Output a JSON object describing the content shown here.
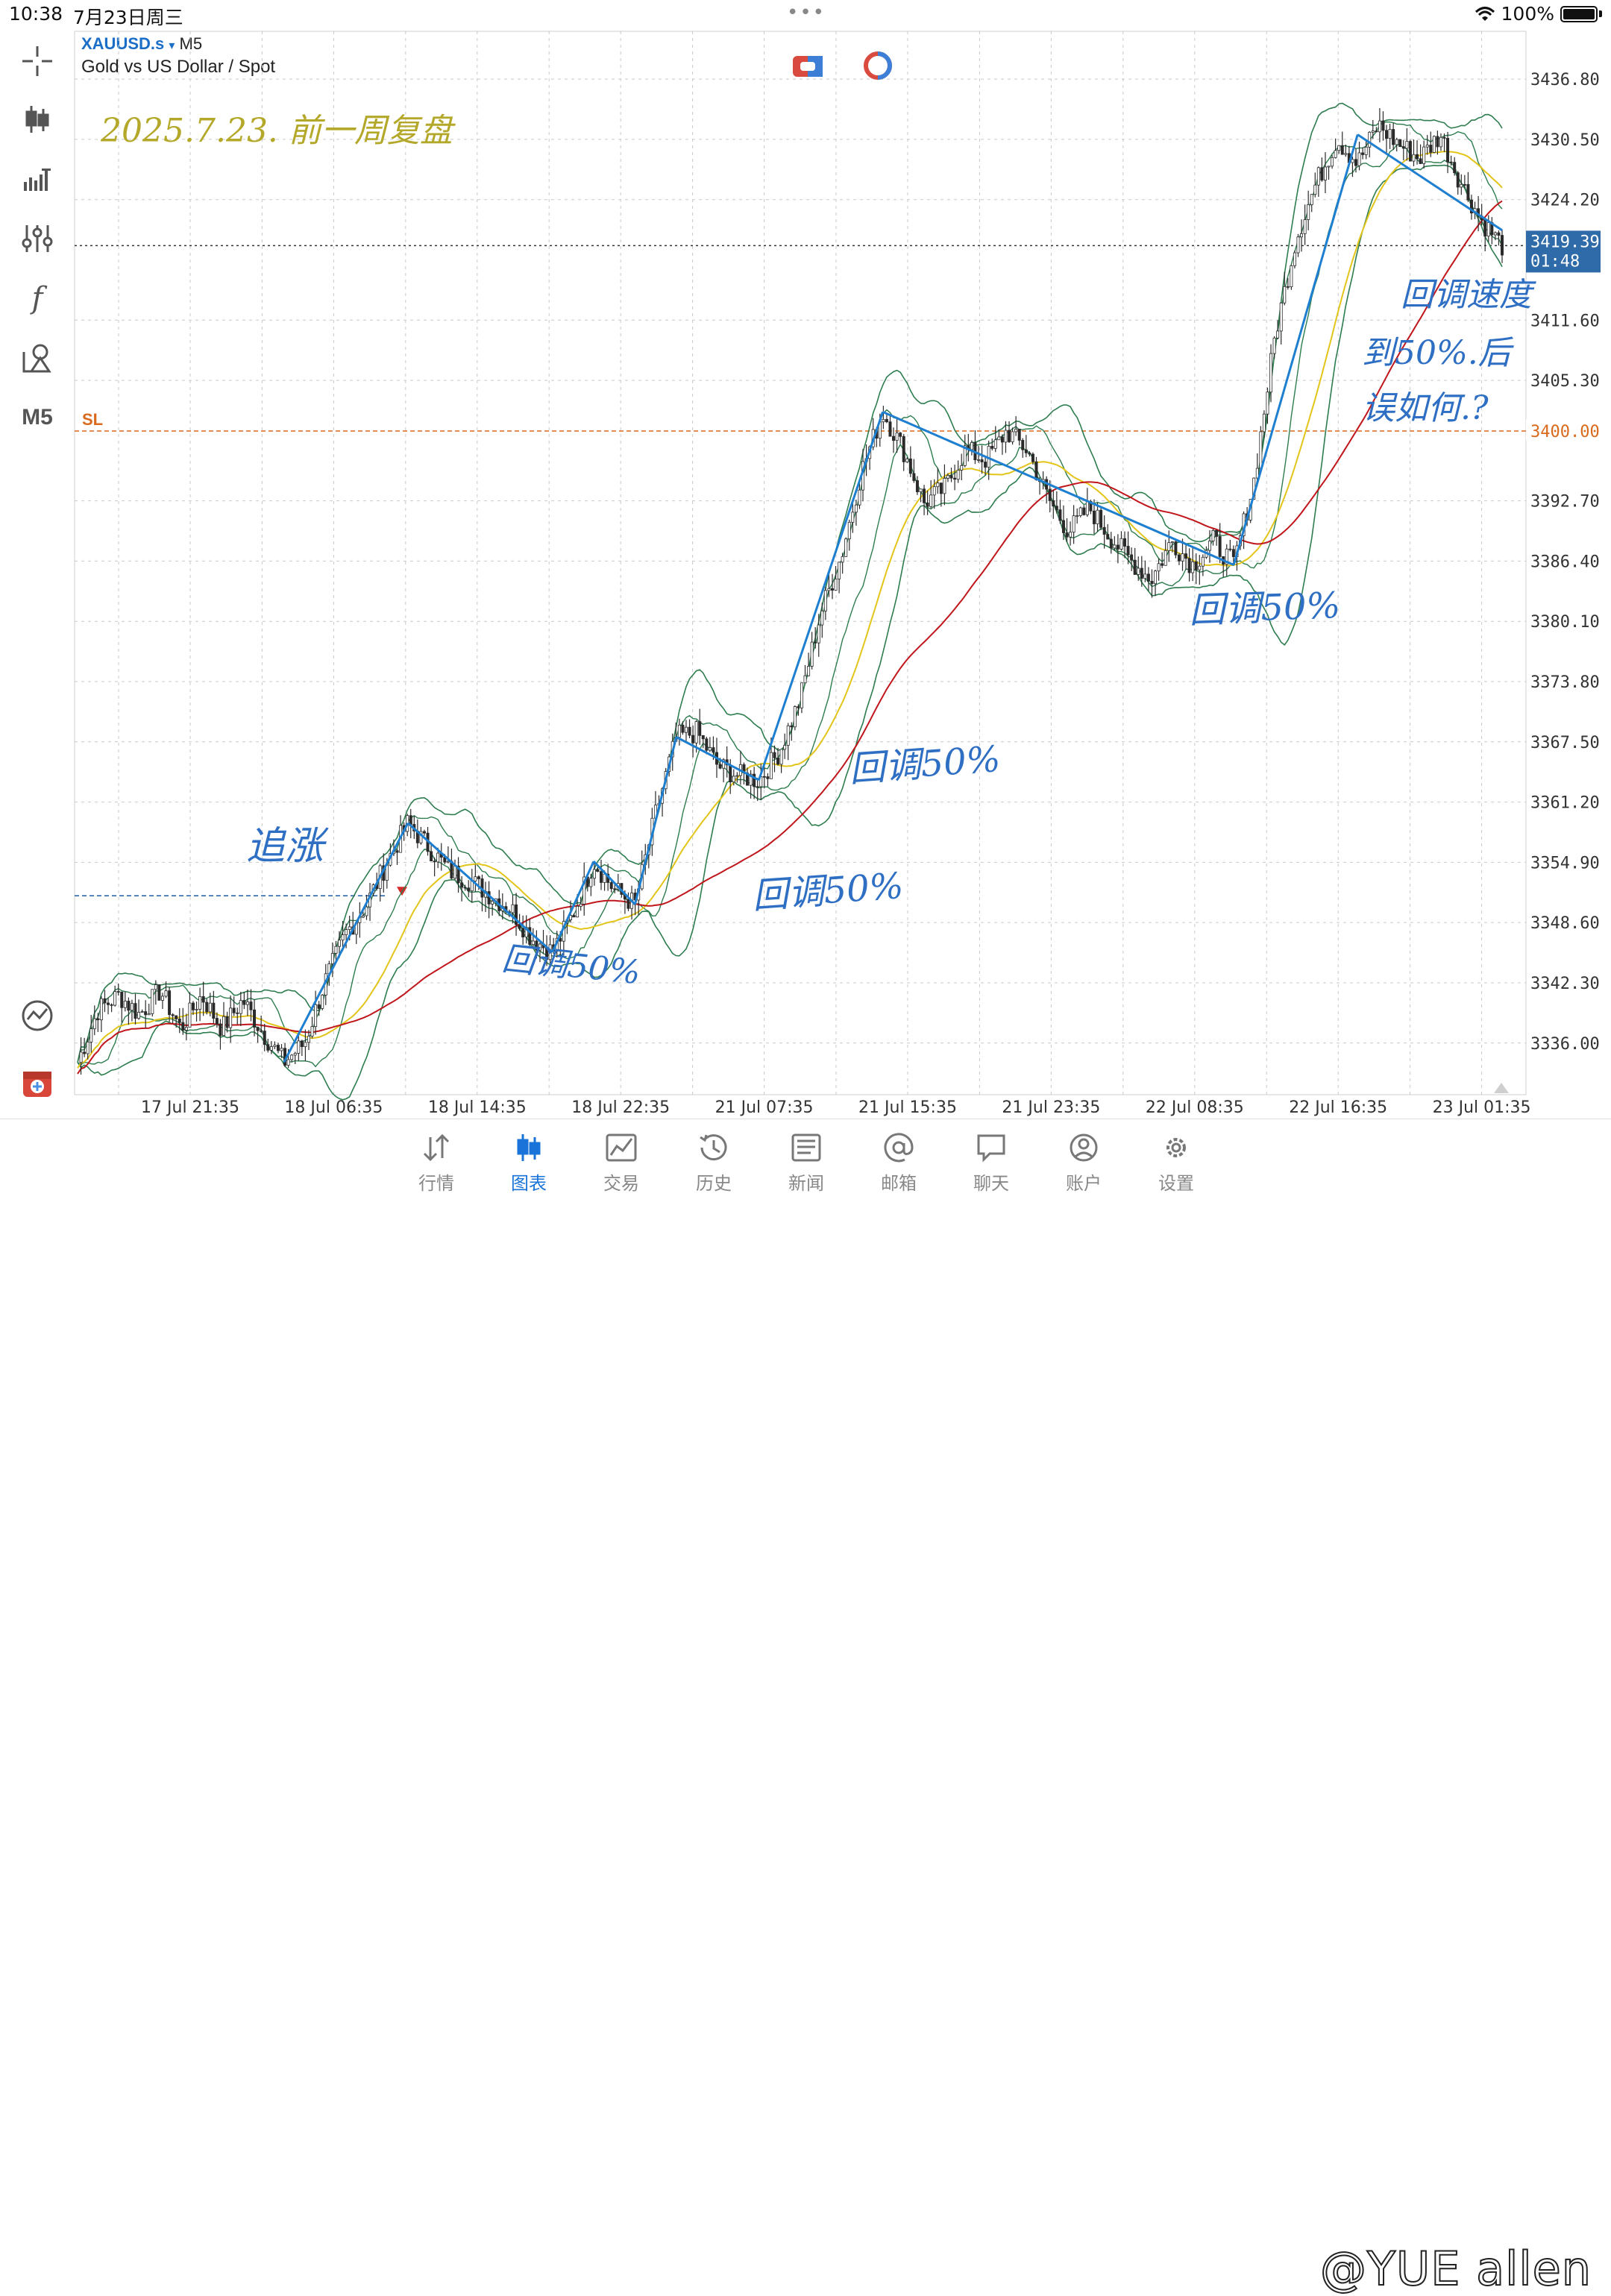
{
  "status_bar": {
    "time": "10:38",
    "date": "7月23日周三",
    "dots": "•••",
    "battery": "100%"
  },
  "left_toolbar": {
    "items": [
      {
        "icon": "crosshair-icon"
      },
      {
        "icon": "candlestick-icon"
      },
      {
        "icon": "indicator-bars-icon"
      },
      {
        "icon": "sliders-icon"
      },
      {
        "icon": "function-icon",
        "label": "f"
      },
      {
        "icon": "objects-icon"
      },
      {
        "icon": "timeframe-label",
        "label": "M5"
      }
    ],
    "bottom_items": [
      {
        "icon": "trend-chart-icon"
      },
      {
        "icon": "add-chart-icon"
      }
    ]
  },
  "chart_header": {
    "symbol": "XAUUSD.s",
    "dropdown": "▾",
    "timeframe": "M5",
    "description": "Gold vs US Dollar / Spot"
  },
  "chart_data": {
    "type": "candlestick",
    "y_ticks": [
      "3436.80",
      "3430.50",
      "3424.20",
      "3411.60",
      "3405.30",
      "3392.70",
      "3386.40",
      "3380.10",
      "3373.80",
      "3367.50",
      "3361.20",
      "3354.90",
      "3348.60",
      "3342.30",
      "3336.00"
    ],
    "y_tick_values": [
      3436.8,
      3430.5,
      3424.2,
      3411.6,
      3405.3,
      3392.7,
      3386.4,
      3380.1,
      3373.8,
      3367.5,
      3361.2,
      3354.9,
      3348.6,
      3342.3,
      3336.0
    ],
    "ylim": [
      3330.6,
      3441.8
    ],
    "x_ticks": [
      "17 Jul 21:35",
      "18 Jul 06:35",
      "18 Jul 14:35",
      "18 Jul 22:35",
      "21 Jul 07:35",
      "21 Jul 15:35",
      "21 Jul 23:35",
      "22 Jul 08:35",
      "22 Jul 16:35",
      "23 Jul 01:35"
    ],
    "current_price": "3419.39",
    "current_price_value": 3419.39,
    "countdown": "01:48",
    "stop_loss_label": "SL",
    "stop_loss_price": "3400.00",
    "stop_loss_value": 3400.0,
    "entry_price_value": 3351.4,
    "price_path": [
      [
        0,
        3334.0
      ],
      [
        1,
        3339.5
      ],
      [
        2,
        3341.0
      ],
      [
        3,
        3339.0
      ],
      [
        4,
        3341.5
      ],
      [
        5,
        3337.5
      ],
      [
        6,
        3341.0
      ],
      [
        7,
        3337.5
      ],
      [
        8,
        3340.5
      ],
      [
        9,
        3337.0
      ],
      [
        10,
        3334.0
      ],
      [
        11,
        3336.0
      ],
      [
        12,
        3342.5
      ],
      [
        13,
        3347.5
      ],
      [
        14,
        3350.5
      ],
      [
        15,
        3355.0
      ],
      [
        16,
        3359.0
      ],
      [
        17,
        3356.5
      ],
      [
        18,
        3354.0
      ],
      [
        19,
        3353.0
      ],
      [
        20,
        3351.5
      ],
      [
        21,
        3350.0
      ],
      [
        22,
        3347.0
      ],
      [
        23,
        3345.5
      ],
      [
        24,
        3349.5
      ],
      [
        25,
        3355.0
      ],
      [
        26,
        3352.0
      ],
      [
        27,
        3350.5
      ],
      [
        28,
        3360.0
      ],
      [
        29,
        3368.0
      ],
      [
        30,
        3368.5
      ],
      [
        31,
        3365.0
      ],
      [
        32,
        3364.0
      ],
      [
        33,
        3363.5
      ],
      [
        34,
        3366.5
      ],
      [
        35,
        3372.0
      ],
      [
        36,
        3381.0
      ],
      [
        37,
        3387.0
      ],
      [
        38,
        3396.0
      ],
      [
        39,
        3402.0
      ],
      [
        40,
        3398.0
      ],
      [
        41,
        3392.5
      ],
      [
        42,
        3394.0
      ],
      [
        43,
        3398.0
      ],
      [
        44,
        3397.0
      ],
      [
        45,
        3400.0
      ],
      [
        46,
        3398.0
      ],
      [
        47,
        3393.0
      ],
      [
        48,
        3389.5
      ],
      [
        49,
        3392.0
      ],
      [
        50,
        3389.0
      ],
      [
        51,
        3386.5
      ],
      [
        52,
        3384.5
      ],
      [
        53,
        3388.5
      ],
      [
        54,
        3386.0
      ],
      [
        55,
        3388.5
      ],
      [
        56,
        3386.0
      ],
      [
        57,
        3395.0
      ],
      [
        58,
        3410.0
      ],
      [
        59,
        3420.0
      ],
      [
        60,
        3426.0
      ],
      [
        61,
        3430.5
      ],
      [
        62,
        3428.0
      ],
      [
        63,
        3432.0
      ],
      [
        64,
        3430.0
      ],
      [
        65,
        3428.5
      ],
      [
        66,
        3431.0
      ],
      [
        67,
        3426.0
      ],
      [
        68,
        3422.0
      ],
      [
        69,
        3419.4
      ]
    ],
    "bars_total": 70
  },
  "annotations": {
    "date_note": "2025.7.23. 前一周复盘",
    "chase": "追涨",
    "pullback_1": "回调50%",
    "pullback_2": "回调50%",
    "pullback_3": "回调50%",
    "pullback_4": "回调50%",
    "right_note_1": "回调速度",
    "right_note_2": "到50%.后",
    "right_note_3": "误如何.?"
  },
  "colors": {
    "price": "#2a2a2a",
    "bollinger": "#2e7d4f",
    "ma_fast": "#e3c51a",
    "ma_slow": "#c0161b",
    "trend_line": "#1e7fd0",
    "handwriting": "#2e6fc4",
    "date_note": "#b4a82a",
    "sl": "#d9691c",
    "price_badge": "#2e6ba8",
    "grid": "#c9c9c9"
  },
  "bottom_nav": {
    "items": [
      {
        "label": "行情",
        "icon": "quotes-icon"
      },
      {
        "label": "图表",
        "icon": "chart-icon",
        "active": true
      },
      {
        "label": "交易",
        "icon": "trade-icon"
      },
      {
        "label": "历史",
        "icon": "history-icon"
      },
      {
        "label": "新闻",
        "icon": "news-icon"
      },
      {
        "label": "邮箱",
        "icon": "mail-icon"
      },
      {
        "label": "聊天",
        "icon": "chat-icon"
      },
      {
        "label": "账户",
        "icon": "account-icon"
      },
      {
        "label": "设置",
        "icon": "settings-icon"
      }
    ]
  },
  "watermark": "@YUE allen"
}
